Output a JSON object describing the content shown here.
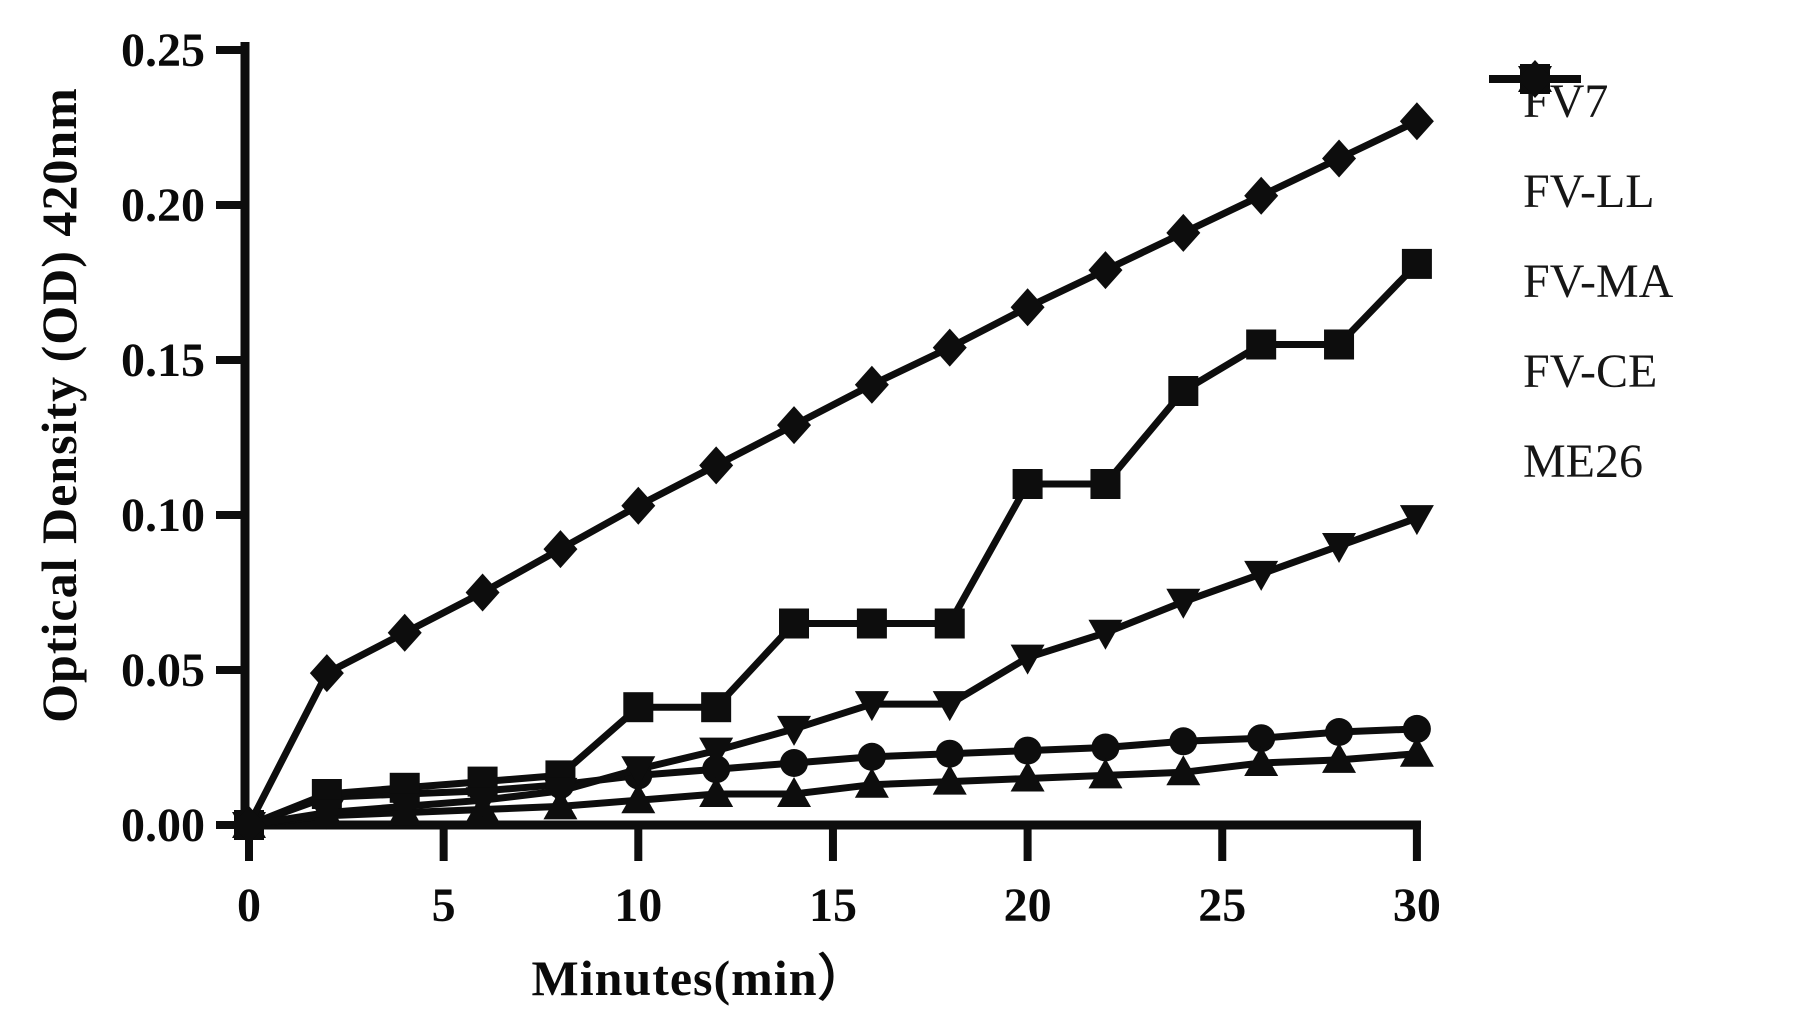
{
  "figure": {
    "background": "#ffffff",
    "ink_color": "#0d0d0d"
  },
  "chart_data": {
    "type": "line",
    "title": "",
    "xlabel": "Minutes(min）",
    "ylabel": "Optical Density (OD) 420nm",
    "x": [
      0,
      2,
      4,
      6,
      8,
      10,
      12,
      14,
      16,
      18,
      20,
      22,
      24,
      26,
      28,
      30
    ],
    "xlim": [
      0,
      30
    ],
    "ylim": [
      0,
      0.25
    ],
    "x_ticks": [
      "0",
      "5",
      "10",
      "15",
      "20",
      "25",
      "30"
    ],
    "x_tick_values": [
      0,
      5,
      10,
      15,
      20,
      25,
      30
    ],
    "y_ticks": [
      "0.00",
      "0.05",
      "0.10",
      "0.15",
      "0.20",
      "0.25"
    ],
    "y_tick_values": [
      0.0,
      0.05,
      0.1,
      0.15,
      0.2,
      0.25
    ],
    "grid": false,
    "legend_position": "right",
    "series": [
      {
        "name": "FV7",
        "marker": "circle",
        "values": [
          0.0,
          0.009,
          0.01,
          0.011,
          0.013,
          0.016,
          0.018,
          0.02,
          0.022,
          0.023,
          0.024,
          0.025,
          0.027,
          0.028,
          0.03,
          0.031
        ]
      },
      {
        "name": "FV-LL",
        "marker": "square",
        "values": [
          0.0,
          0.01,
          0.012,
          0.014,
          0.016,
          0.038,
          0.038,
          0.065,
          0.065,
          0.065,
          0.11,
          0.11,
          0.14,
          0.155,
          0.155,
          0.181
        ]
      },
      {
        "name": "FV-MA",
        "marker": "triangle-up",
        "values": [
          0.0,
          0.003,
          0.004,
          0.005,
          0.006,
          0.008,
          0.01,
          0.01,
          0.013,
          0.014,
          0.015,
          0.016,
          0.017,
          0.02,
          0.021,
          0.023
        ]
      },
      {
        "name": "FV-CE",
        "marker": "triangle-down",
        "values": [
          0.0,
          0.004,
          0.006,
          0.008,
          0.011,
          0.018,
          0.024,
          0.031,
          0.039,
          0.039,
          0.054,
          0.062,
          0.072,
          0.081,
          0.09,
          0.099
        ]
      },
      {
        "name": "ME26",
        "marker": "diamond",
        "values": [
          0.0,
          0.049,
          0.062,
          0.075,
          0.089,
          0.103,
          0.116,
          0.129,
          0.142,
          0.154,
          0.167,
          0.179,
          0.191,
          0.203,
          0.215,
          0.227
        ]
      }
    ]
  }
}
